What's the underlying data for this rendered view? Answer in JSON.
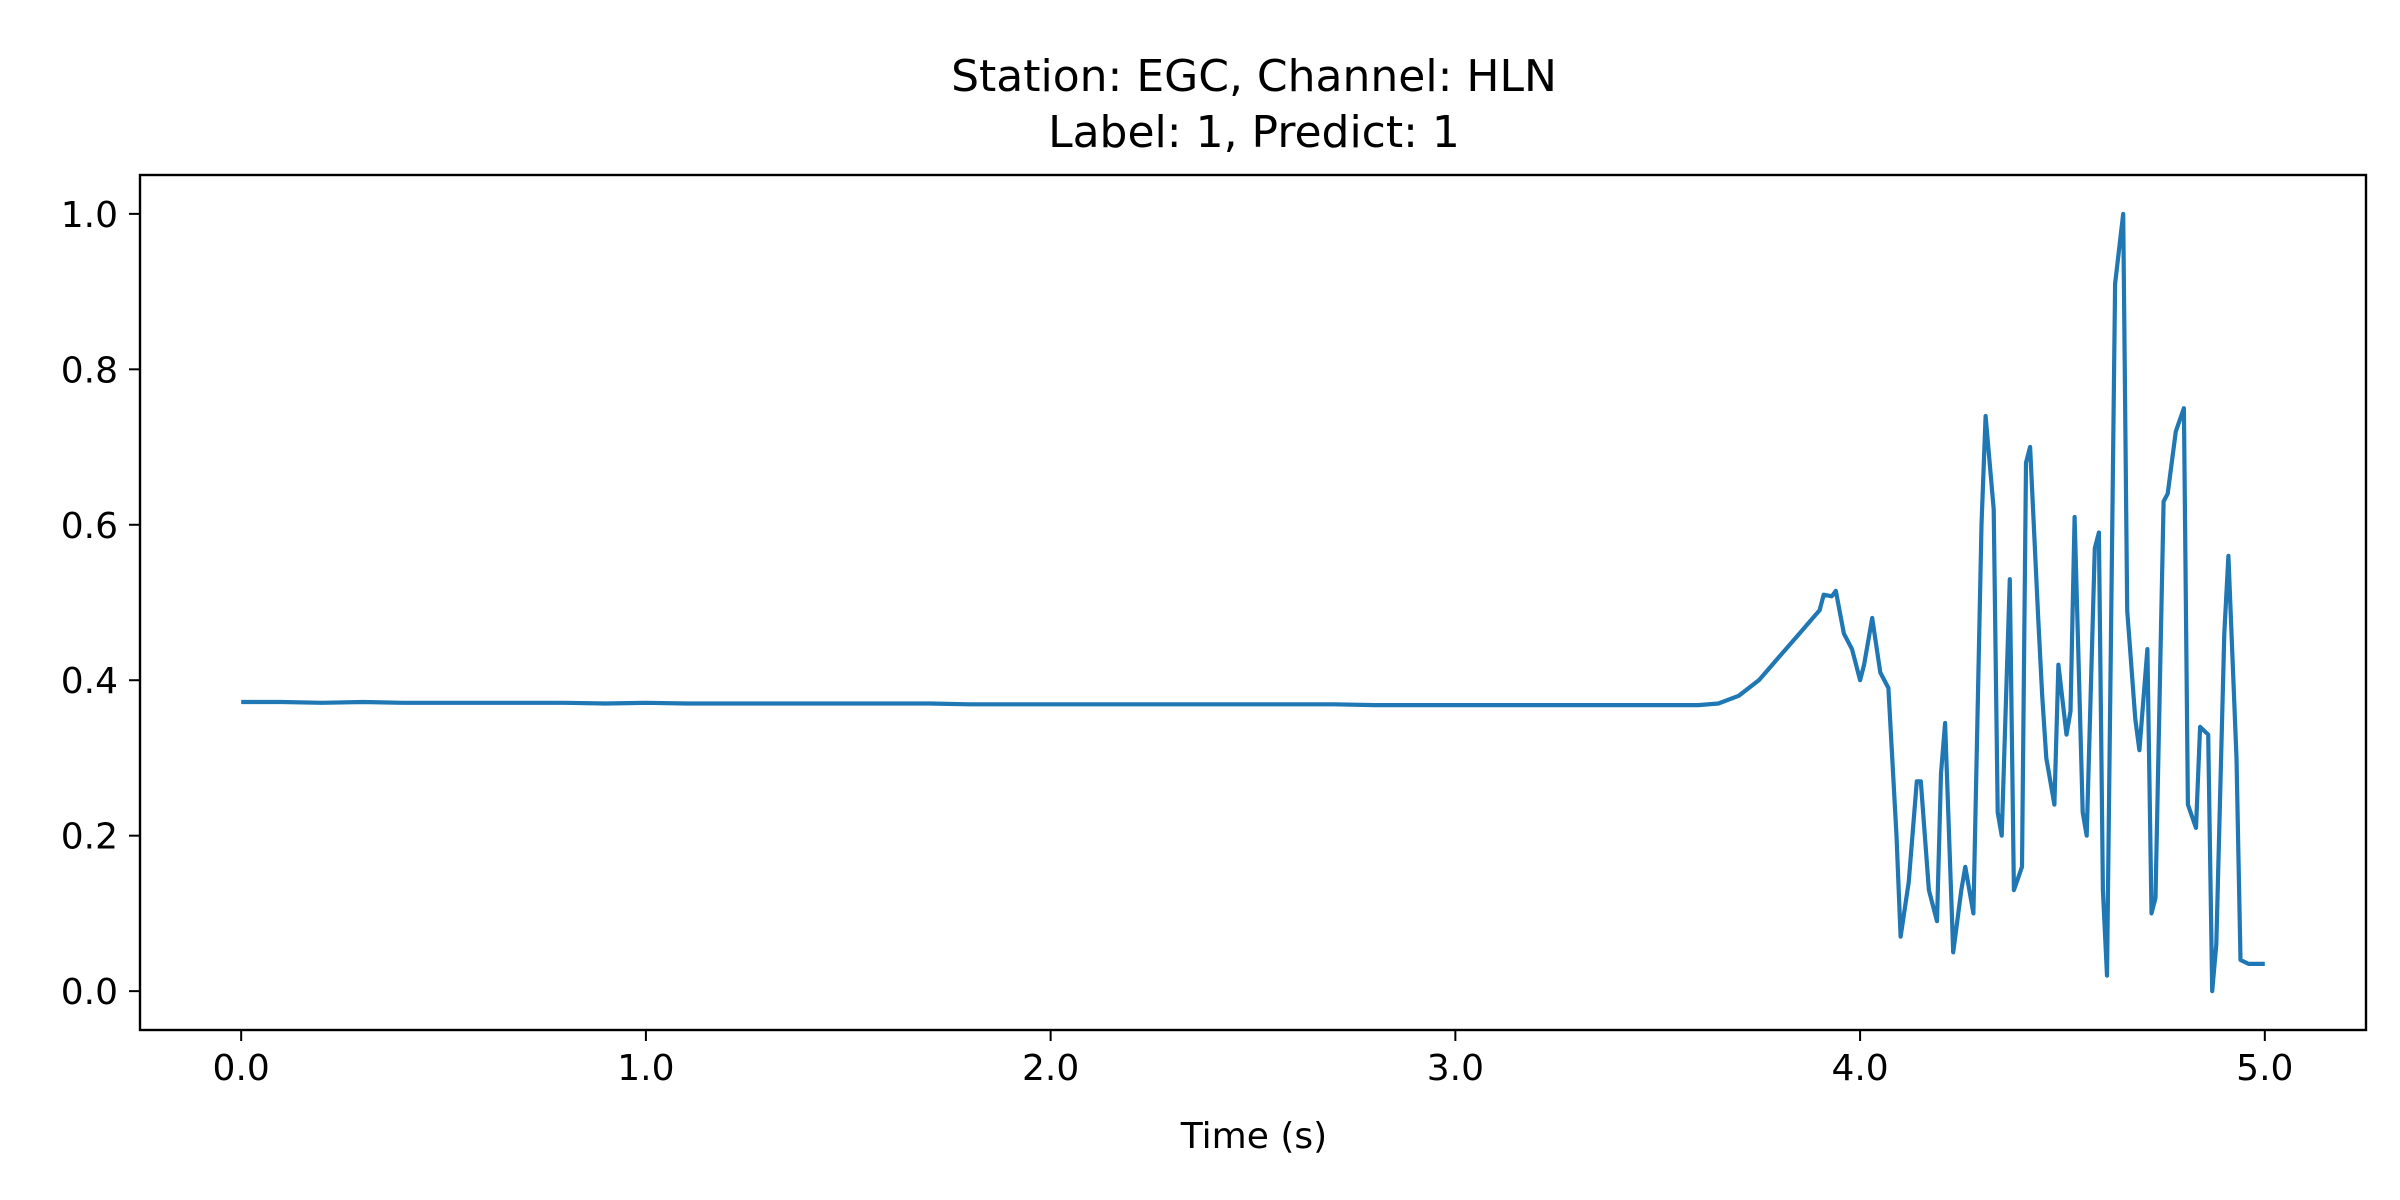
{
  "chart_data": {
    "type": "line",
    "title_line1": "Station: EGC, Channel: HLN",
    "title_line2": "Label: 1, Predict: 1",
    "xlabel": "Time (s)",
    "ylabel": "",
    "xlim": [
      -0.25,
      5.25
    ],
    "ylim": [
      -0.05,
      1.05
    ],
    "x_ticks": [
      0.0,
      1.0,
      2.0,
      3.0,
      4.0,
      5.0
    ],
    "x_tick_labels": [
      "0.0",
      "1.0",
      "2.0",
      "3.0",
      "4.0",
      "5.0"
    ],
    "y_ticks": [
      0.0,
      0.2,
      0.4,
      0.6,
      0.8,
      1.0
    ],
    "y_tick_labels": [
      "0.0",
      "0.2",
      "0.4",
      "0.6",
      "0.8",
      "1.0"
    ],
    "grid": false,
    "line_color": "#1f77b4",
    "series": [
      {
        "x": [
          0.0,
          0.1,
          0.2,
          0.3,
          0.4,
          0.5,
          0.6,
          0.7,
          0.8,
          0.9,
          1.0,
          1.1,
          1.2,
          1.3,
          1.4,
          1.5,
          1.6,
          1.7,
          1.8,
          1.9,
          2.0,
          2.1,
          2.2,
          2.3,
          2.4,
          2.5,
          2.6,
          2.7,
          2.8,
          2.9,
          3.0,
          3.1,
          3.2,
          3.3,
          3.4,
          3.5,
          3.6,
          3.65,
          3.7,
          3.75,
          3.8,
          3.85,
          3.875,
          3.9,
          3.91,
          3.93,
          3.94,
          3.96,
          3.98,
          4.0,
          4.01,
          4.03,
          4.05,
          4.07,
          4.09,
          4.1,
          4.12,
          4.14,
          4.15,
          4.17,
          4.19,
          4.2,
          4.21,
          4.23,
          4.25,
          4.26,
          4.28,
          4.3,
          4.31,
          4.33,
          4.34,
          4.35,
          4.37,
          4.38,
          4.4,
          4.41,
          4.42,
          4.44,
          4.45,
          4.46,
          4.48,
          4.49,
          4.51,
          4.52,
          4.53,
          4.55,
          4.56,
          4.58,
          4.59,
          4.6,
          4.61,
          4.63,
          4.65,
          4.66,
          4.68,
          4.69,
          4.71,
          4.72,
          4.73,
          4.75,
          4.76,
          4.78,
          4.8,
          4.81,
          4.83,
          4.84,
          4.86,
          4.87,
          4.88,
          4.9,
          4.91,
          4.93,
          4.94,
          4.96,
          4.97,
          4.98,
          5.0
        ],
        "y": [
          0.372,
          0.372,
          0.371,
          0.372,
          0.371,
          0.371,
          0.371,
          0.371,
          0.371,
          0.37,
          0.371,
          0.37,
          0.37,
          0.37,
          0.37,
          0.37,
          0.37,
          0.37,
          0.369,
          0.369,
          0.369,
          0.369,
          0.369,
          0.369,
          0.369,
          0.369,
          0.369,
          0.369,
          0.368,
          0.368,
          0.368,
          0.368,
          0.368,
          0.368,
          0.368,
          0.368,
          0.368,
          0.37,
          0.38,
          0.4,
          0.43,
          0.46,
          0.475,
          0.49,
          0.51,
          0.508,
          0.515,
          0.46,
          0.44,
          0.4,
          0.42,
          0.48,
          0.41,
          0.39,
          0.2,
          0.07,
          0.14,
          0.27,
          0.27,
          0.13,
          0.09,
          0.28,
          0.345,
          0.05,
          0.13,
          0.16,
          0.1,
          0.6,
          0.74,
          0.62,
          0.23,
          0.2,
          0.53,
          0.13,
          0.16,
          0.68,
          0.7,
          0.48,
          0.38,
          0.3,
          0.24,
          0.42,
          0.33,
          0.36,
          0.61,
          0.23,
          0.2,
          0.57,
          0.59,
          0.13,
          0.02,
          0.91,
          1.0,
          0.49,
          0.35,
          0.31,
          0.44,
          0.1,
          0.12,
          0.63,
          0.64,
          0.72,
          0.75,
          0.24,
          0.21,
          0.34,
          0.33,
          0.0,
          0.06,
          0.46,
          0.56,
          0.3,
          0.04,
          0.035,
          0.035,
          0.035,
          0.035
        ]
      }
    ]
  }
}
